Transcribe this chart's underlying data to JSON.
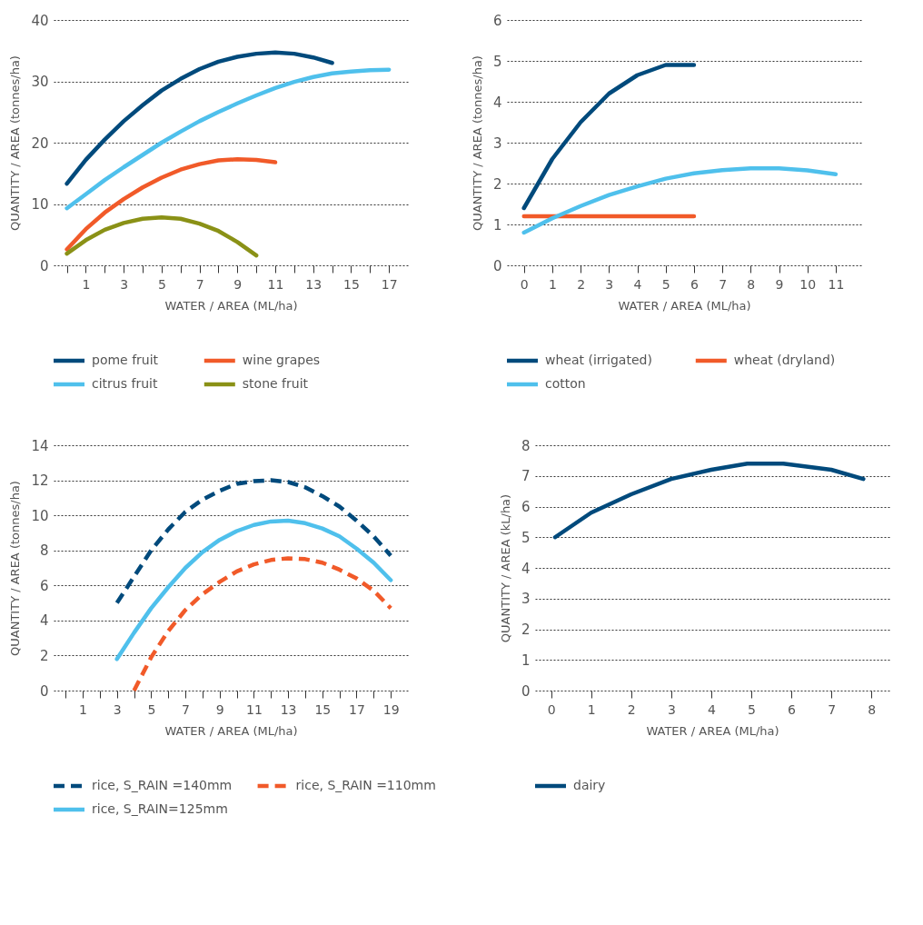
{
  "chart_data": [
    {
      "type": "line",
      "xlabel": "WATER / AREA (ML/ha)",
      "ylabel": "QUANTITY / AREA (tonnes/ha)",
      "xlim": [
        -0.7,
        18
      ],
      "ylim": [
        0,
        40
      ],
      "xticks": [
        {
          "value": 0,
          "label": null
        },
        1,
        {
          "value": 2,
          "label": null
        },
        3,
        {
          "value": 4,
          "label": null
        },
        5,
        {
          "value": 6,
          "label": null
        },
        7,
        {
          "value": 8,
          "label": null
        },
        9,
        {
          "value": 10,
          "label": null
        },
        11,
        {
          "value": 12,
          "label": null
        },
        13,
        {
          "value": 14,
          "label": null
        },
        15,
        {
          "value": 16,
          "label": null
        },
        17
      ],
      "yticks": [
        0,
        10,
        20,
        30,
        40
      ],
      "grid": "y",
      "legend": "bottom",
      "line_style": "solid",
      "series": [
        {
          "name": "pome fruit",
          "color": "#004a7c",
          "x": [
            0,
            1,
            2,
            3,
            4,
            5,
            6,
            7,
            8,
            9,
            10,
            11,
            12,
            13,
            14
          ],
          "values": [
            13.3,
            17.2,
            20.5,
            23.5,
            26.1,
            28.5,
            30.4,
            32,
            33.2,
            34,
            34.5,
            34.7,
            34.5,
            33.9,
            33
          ]
        },
        {
          "name": "wine grapes",
          "color": "#f15a29",
          "x": [
            0,
            1,
            2,
            3,
            4,
            5,
            6,
            7,
            8,
            9,
            10,
            11
          ],
          "values": [
            2.6,
            5.9,
            8.6,
            10.8,
            12.7,
            14.3,
            15.6,
            16.5,
            17.1,
            17.3,
            17.2,
            16.8
          ]
        },
        {
          "name": "citrus fruit",
          "color": "#4fc0ec",
          "x": [
            0,
            1,
            2,
            3,
            4,
            5,
            6,
            7,
            8,
            9,
            10,
            11,
            12,
            13,
            14,
            15,
            16,
            17
          ],
          "values": [
            9.3,
            11.6,
            13.9,
            16,
            18,
            20,
            21.8,
            23.5,
            25,
            26.4,
            27.7,
            28.9,
            29.9,
            30.7,
            31.3,
            31.6,
            31.8,
            31.9
          ]
        },
        {
          "name": "stone fruit",
          "color": "#8a9116",
          "x": [
            0,
            1,
            2,
            3,
            4,
            5,
            6,
            7,
            8,
            9,
            10
          ],
          "values": [
            1.9,
            4.1,
            5.8,
            6.9,
            7.6,
            7.8,
            7.6,
            6.8,
            5.6,
            3.8,
            1.6
          ]
        }
      ]
    },
    {
      "type": "line",
      "xlabel": "WATER / AREA (ML/ha)",
      "ylabel": "QUANTITY / AREA (tonnes/ha)",
      "xlim": [
        -0.6,
        11.9
      ],
      "ylim": [
        0,
        6
      ],
      "xticks": [
        0,
        1,
        2,
        3,
        4,
        5,
        6,
        7,
        8,
        9,
        10,
        11
      ],
      "yticks": [
        0,
        1,
        2,
        3,
        4,
        5,
        6
      ],
      "grid": "y",
      "legend": "bottom",
      "line_style": "solid",
      "series": [
        {
          "name": "wheat (irrigated)",
          "color": "#004a7c",
          "x": [
            0,
            1,
            2,
            3,
            4,
            5,
            6
          ],
          "values": [
            1.4,
            2.6,
            3.5,
            4.2,
            4.65,
            4.9,
            4.9
          ]
        },
        {
          "name": "wheat (dryland)",
          "color": "#f15a29",
          "x": [
            0,
            1,
            2,
            3,
            4,
            5,
            6
          ],
          "values": [
            1.2,
            1.2,
            1.2,
            1.2,
            1.2,
            1.2,
            1.2
          ]
        },
        {
          "name": "cotton",
          "color": "#4fc0ec",
          "x": [
            0,
            1,
            2,
            3,
            4,
            5,
            6,
            7,
            8,
            9,
            10,
            11
          ],
          "values": [
            0.8,
            1.15,
            1.45,
            1.72,
            1.93,
            2.12,
            2.25,
            2.33,
            2.37,
            2.37,
            2.32,
            2.23
          ]
        }
      ]
    },
    {
      "type": "line",
      "xlabel": "WATER / AREA (ML/ha)",
      "ylabel": "QUANTITY / AREA (tonnes/ha)",
      "xlim": [
        -0.7,
        20
      ],
      "ylim": [
        0,
        14
      ],
      "xticks": [
        {
          "value": 0,
          "label": null
        },
        1,
        {
          "value": 2,
          "label": null
        },
        3,
        {
          "value": 4,
          "label": null
        },
        5,
        {
          "value": 6,
          "label": null
        },
        7,
        {
          "value": 8,
          "label": null
        },
        9,
        {
          "value": 10,
          "label": null
        },
        11,
        {
          "value": 12,
          "label": null
        },
        13,
        {
          "value": 14,
          "label": null
        },
        15,
        {
          "value": 16,
          "label": null
        },
        17,
        {
          "value": 18,
          "label": null
        },
        19
      ],
      "yticks": [
        0,
        2,
        4,
        6,
        8,
        10,
        12,
        14
      ],
      "grid": "y",
      "legend": "bottom",
      "series": [
        {
          "name": "rice, S_RAIN =140mm",
          "color": "#004a7c",
          "line_style": "dashed",
          "x": [
            3,
            4,
            5,
            6,
            7,
            8,
            9,
            10,
            11,
            12,
            13,
            14,
            15,
            16,
            17,
            18,
            19
          ],
          "values": [
            5.0,
            6.5,
            8.0,
            9.2,
            10.2,
            10.9,
            11.4,
            11.8,
            11.95,
            12.0,
            11.9,
            11.6,
            11.1,
            10.5,
            9.7,
            8.8,
            7.7
          ]
        },
        {
          "name": "rice, S_RAIN =110mm",
          "color": "#f15a29",
          "line_style": "dashed",
          "x": [
            4,
            5,
            6,
            7,
            8,
            9,
            10,
            11,
            12,
            13,
            14,
            15,
            16,
            17,
            18,
            19
          ],
          "values": [
            0,
            1.9,
            3.4,
            4.6,
            5.5,
            6.2,
            6.8,
            7.2,
            7.45,
            7.55,
            7.5,
            7.3,
            6.9,
            6.4,
            5.7,
            4.7
          ]
        },
        {
          "name": "rice, S_RAIN=125mm",
          "color": "#4fc0ec",
          "line_style": "solid",
          "x": [
            3,
            4,
            5,
            6,
            7,
            8,
            9,
            10,
            11,
            12,
            13,
            14,
            15,
            16,
            17,
            18,
            19
          ],
          "values": [
            1.8,
            3.3,
            4.7,
            5.9,
            7.0,
            7.9,
            8.6,
            9.1,
            9.45,
            9.65,
            9.7,
            9.55,
            9.25,
            8.8,
            8.1,
            7.3,
            6.3
          ]
        }
      ]
    },
    {
      "type": "line",
      "xlabel": "WATER / AREA (ML/ha)",
      "ylabel": "QUANTITY / AREA (kL/ha)",
      "xlim": [
        -0.4,
        8.45
      ],
      "ylim": [
        0,
        8
      ],
      "xticks": [
        0,
        1,
        2,
        3,
        4,
        5,
        6,
        7,
        8
      ],
      "yticks": [
        0,
        1,
        2,
        3,
        4,
        5,
        6,
        7,
        8
      ],
      "grid": "y",
      "legend": "bottom",
      "line_style": "solid",
      "series": [
        {
          "name": "dairy",
          "color": "#004a7c",
          "x": [
            0.1,
            1,
            2,
            3,
            4,
            4.9,
            5.8,
            7,
            7.8
          ],
          "values": [
            5.0,
            5.8,
            6.4,
            6.9,
            7.2,
            7.4,
            7.4,
            7.2,
            6.9
          ]
        }
      ]
    }
  ]
}
